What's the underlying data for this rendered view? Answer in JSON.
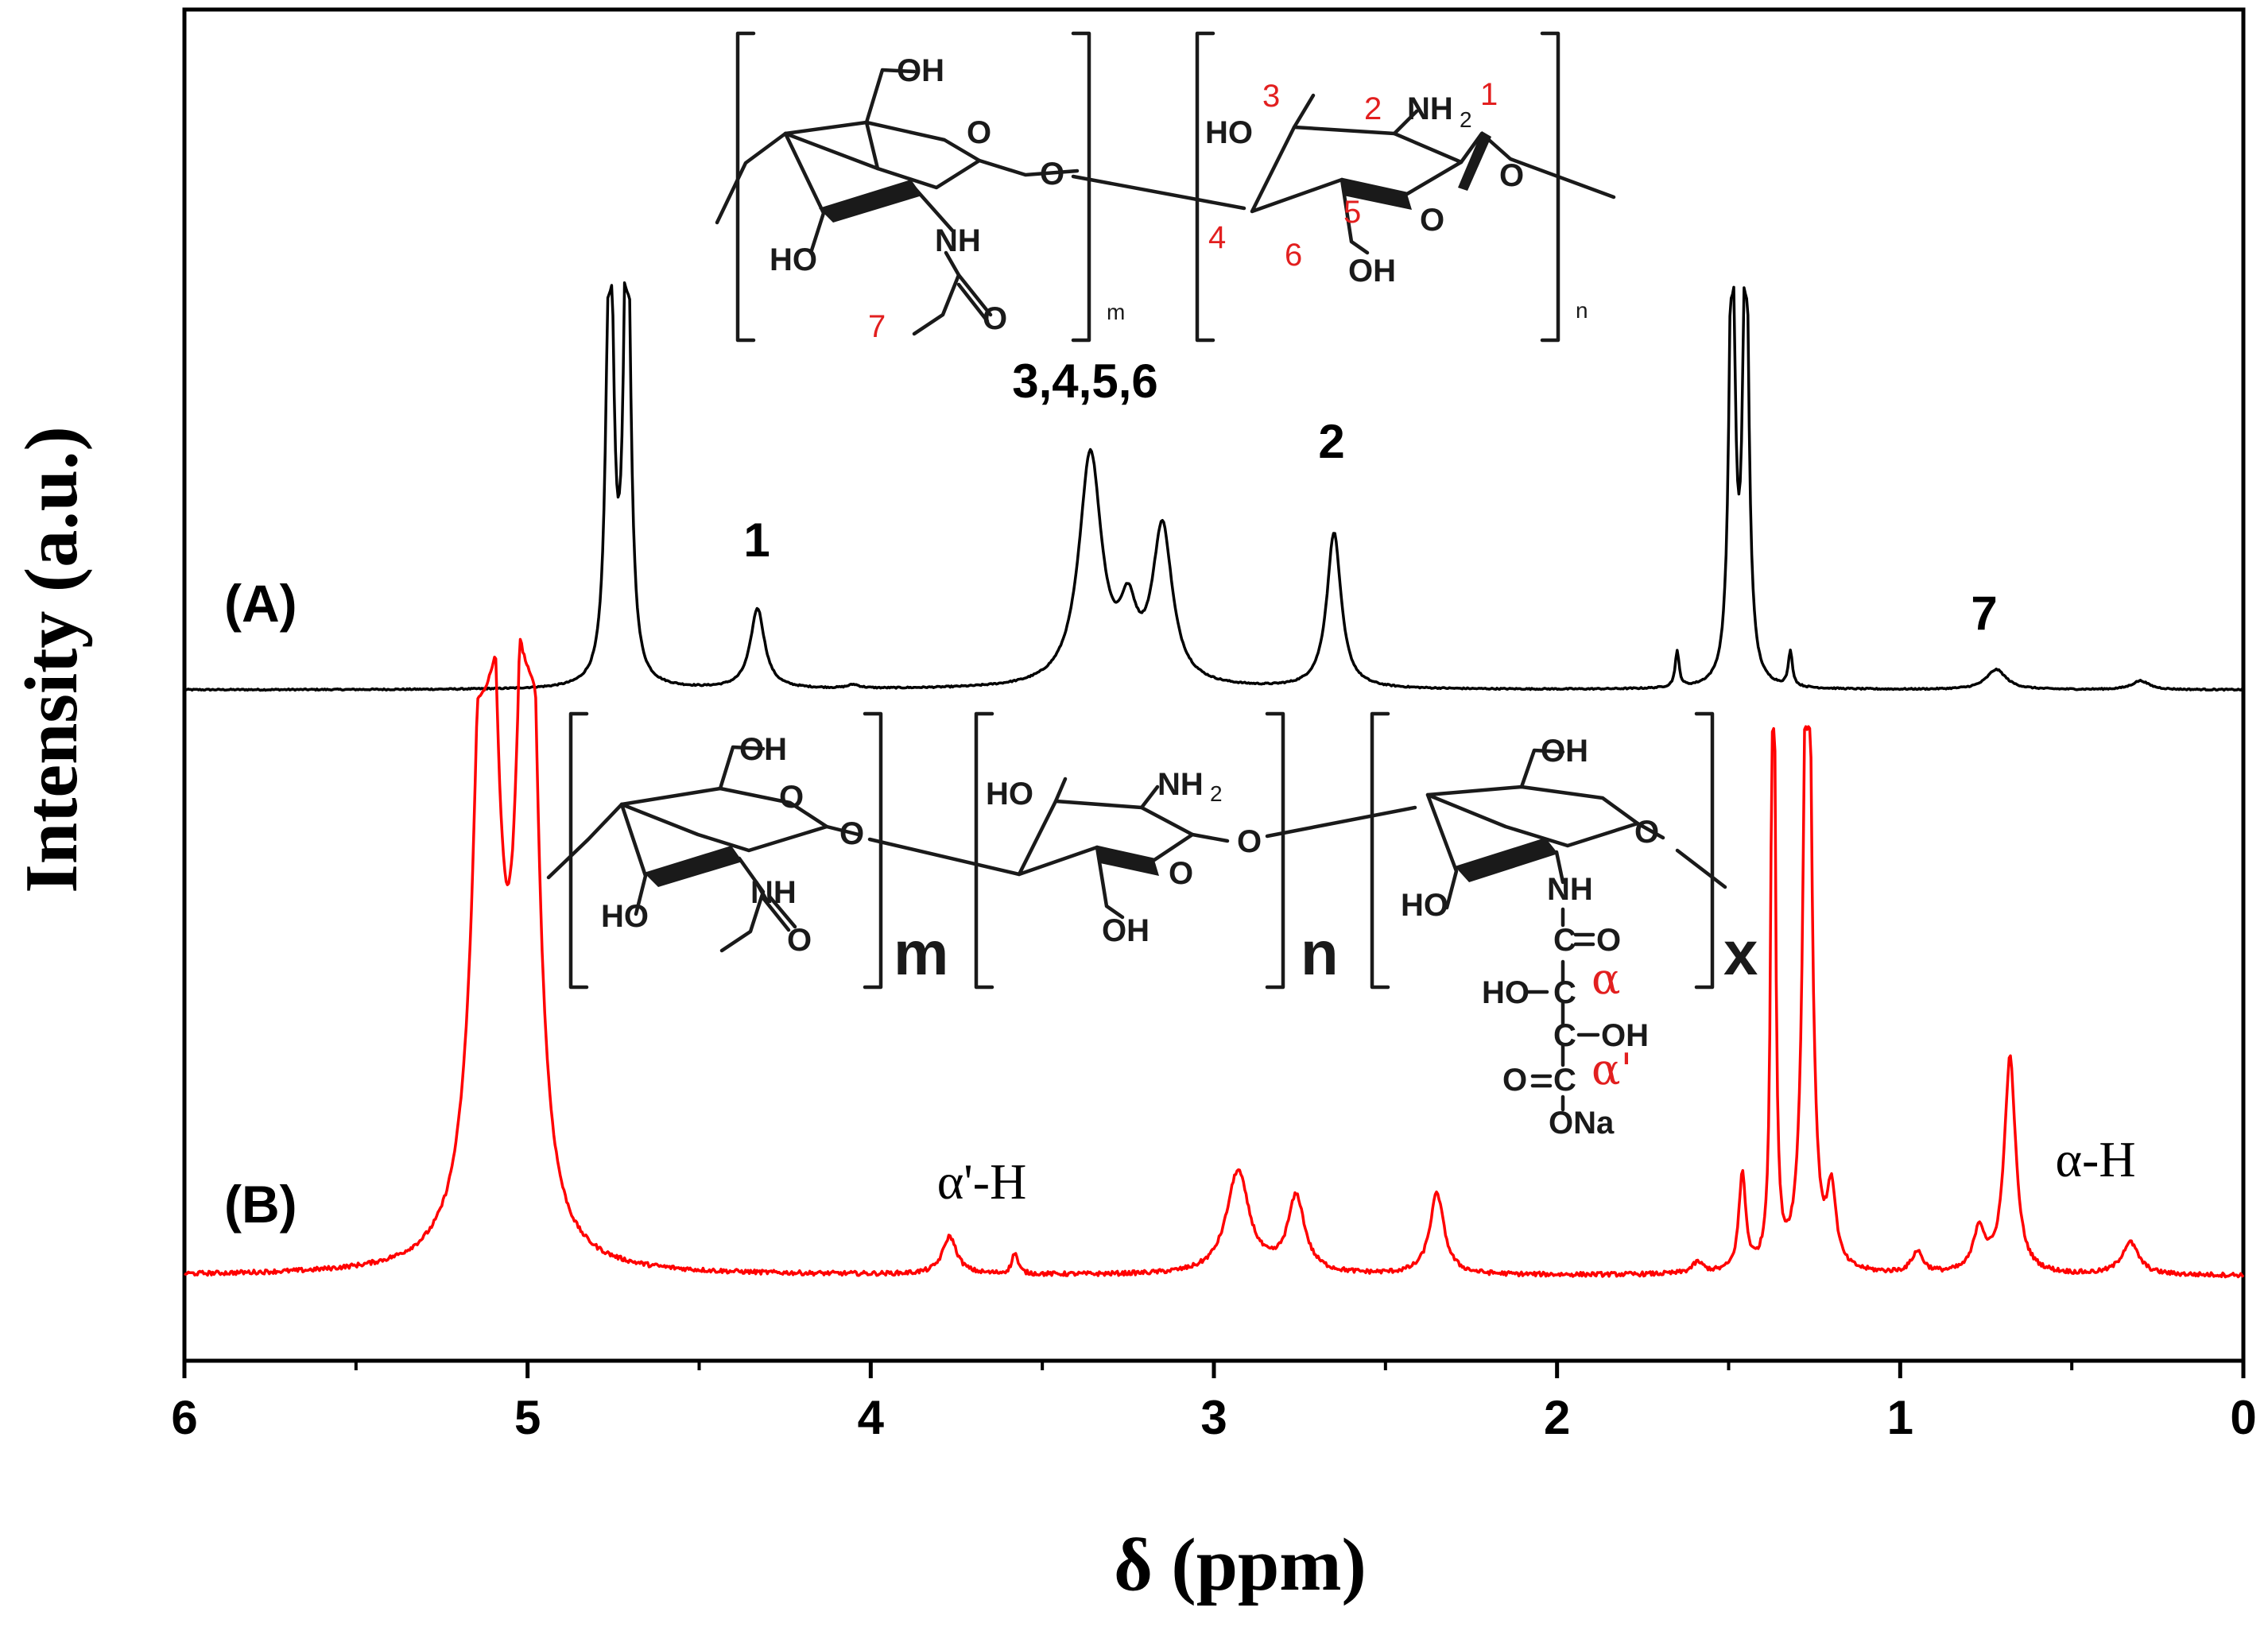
{
  "chart_data": {
    "type": "line",
    "xlabel": "δ (ppm)",
    "ylabel": "Intensity (a.u.)",
    "xlim": [
      6,
      0
    ],
    "x_reversed": true,
    "xticks": [
      "6",
      "5",
      "4",
      "3",
      "2",
      "1",
      "0"
    ],
    "y_ticks_shown": false,
    "grid": false,
    "series": [
      {
        "name": "(A)",
        "color": "#000000",
        "baseline": 0,
        "noise": 0.0015,
        "peaks": [
          {
            "x": 4.76,
            "height": 1.15,
            "width": 0.012,
            "clip": 0.83
          },
          {
            "x": 4.71,
            "height": 1.15,
            "width": 0.012,
            "clip": 0.83
          },
          {
            "x": 4.33,
            "height": 0.18,
            "width": 0.025
          },
          {
            "x": 3.36,
            "height": 0.52,
            "width": 0.04
          },
          {
            "x": 3.25,
            "height": 0.14,
            "width": 0.03
          },
          {
            "x": 3.15,
            "height": 0.35,
            "width": 0.035
          },
          {
            "x": 2.65,
            "height": 0.35,
            "width": 0.025
          },
          {
            "x": 4.05,
            "height": 0.008,
            "width": 0.02
          },
          {
            "x": 1.65,
            "height": 0.08,
            "width": 0.007
          },
          {
            "x": 1.49,
            "height": 1.1,
            "width": 0.01,
            "clip": 0.82
          },
          {
            "x": 1.45,
            "height": 1.1,
            "width": 0.01,
            "clip": 0.82
          },
          {
            "x": 1.32,
            "height": 0.08,
            "width": 0.007
          },
          {
            "x": 0.72,
            "height": 0.045,
            "width": 0.035
          },
          {
            "x": 0.3,
            "height": 0.02,
            "width": 0.03
          }
        ],
        "annotations": [
          {
            "x": 4.33,
            "text": "1"
          },
          {
            "x": 3.36,
            "text": "3,4,5,6"
          },
          {
            "x": 2.65,
            "text": "2"
          },
          {
            "x": 0.72,
            "text": "7"
          }
        ]
      },
      {
        "name": "(B)",
        "color": "#ff0000",
        "baseline": 0,
        "noise": 0.004,
        "peaks": [
          {
            "x": 5.12,
            "height": 1.6,
            "width": 0.035,
            "clip": 1.0
          },
          {
            "x": 5.0,
            "height": 1.6,
            "width": 0.03,
            "clip": 1.0
          },
          {
            "x": 3.77,
            "height": 0.07,
            "width": 0.025
          },
          {
            "x": 3.58,
            "height": 0.04,
            "width": 0.01
          },
          {
            "x": 2.93,
            "height": 0.19,
            "width": 0.04
          },
          {
            "x": 2.76,
            "height": 0.14,
            "width": 0.03
          },
          {
            "x": 2.35,
            "height": 0.15,
            "width": 0.025
          },
          {
            "x": 1.59,
            "height": 0.02,
            "width": 0.02
          },
          {
            "x": 1.46,
            "height": 0.18,
            "width": 0.012
          },
          {
            "x": 1.37,
            "height": 1.6,
            "width": 0.006,
            "clip": 0.98
          },
          {
            "x": 1.27,
            "height": 1.6,
            "width": 0.012,
            "clip": 1.0
          },
          {
            "x": 1.2,
            "height": 0.14,
            "width": 0.015
          },
          {
            "x": 0.95,
            "height": 0.04,
            "width": 0.02
          },
          {
            "x": 0.77,
            "height": 0.08,
            "width": 0.02
          },
          {
            "x": 0.68,
            "height": 0.4,
            "width": 0.02
          },
          {
            "x": 0.33,
            "height": 0.06,
            "width": 0.03
          }
        ],
        "annotations": [
          {
            "x": 3.77,
            "text": "α'-H"
          },
          {
            "x": 0.5,
            "text": "α-H"
          }
        ]
      }
    ],
    "structure_A": {
      "atoms": [
        "OH",
        "O",
        "O",
        "HO",
        "NH",
        "O",
        "HO",
        "NH",
        "2",
        "O",
        "O",
        "OH"
      ],
      "numbers": [
        "1",
        "2",
        "3",
        "4",
        "5",
        "6",
        "7"
      ],
      "repeat_units": [
        "m",
        "n"
      ]
    },
    "structure_B": {
      "atoms": [
        "OH",
        "O",
        "O",
        "HO",
        "NH",
        "O",
        "HO",
        "NH",
        "2",
        "O",
        "O",
        "OH",
        "OH",
        "O",
        "HO",
        "NH",
        "C",
        "O",
        "HO",
        "C",
        "C",
        "OH",
        "O",
        "C",
        "ONa"
      ],
      "greek": [
        "α",
        "α'"
      ],
      "repeat_units": [
        "m",
        "n",
        "x"
      ]
    }
  }
}
